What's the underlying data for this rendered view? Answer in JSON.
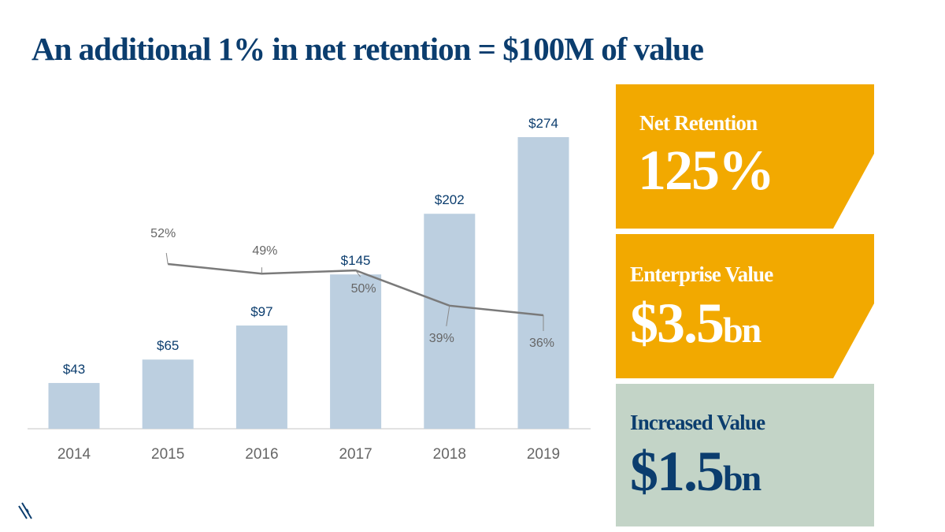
{
  "chart_data": {
    "type": "bar",
    "title": "An additional 1% in net retention = $100M of value",
    "categories": [
      "2014",
      "2015",
      "2016",
      "2017",
      "2018",
      "2019"
    ],
    "values": [
      43,
      65,
      97,
      145,
      202,
      274
    ],
    "value_labels": [
      "$43",
      "$65",
      "$97",
      "$145",
      "$202",
      "$274"
    ],
    "color": "#bccfe0",
    "line": {
      "values": [
        null,
        52,
        49,
        50,
        39,
        36
      ],
      "value_labels": [
        null,
        "52%",
        "49%",
        "50%",
        "39%",
        "36%"
      ],
      "color": "#7a7a7a"
    }
  },
  "panels": [
    {
      "label": "Net Retention",
      "value": "125%",
      "color": "#f2a900"
    },
    {
      "label": "Enterprise Value",
      "value": "$3.5",
      "unit": "bn",
      "color": "#f2a900"
    },
    {
      "label": "Increased Value",
      "value": "$1.5",
      "unit": "bn",
      "color": "#c3d4c7"
    }
  ]
}
